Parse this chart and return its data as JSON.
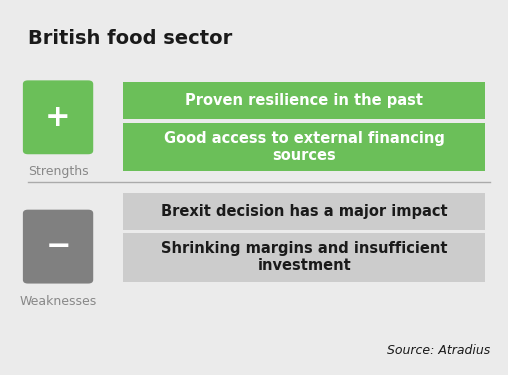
{
  "title": "British food sector",
  "background_color": "#ebebeb",
  "title_fontsize": 14,
  "title_color": "#1a1a1a",
  "strengths_label": "Strengths",
  "weaknesses_label": "Weaknesses",
  "plus_box_color": "#6bbf59",
  "minus_box_color": "#808080",
  "strength_items": [
    "Proven resilience in the past",
    "Good access to external financing\nsources"
  ],
  "weakness_items": [
    "Brexit decision has a major impact",
    "Shrinking margins and insufficient\ninvestment"
  ],
  "strength_box_color": "#6bbf59",
  "weakness_box_color": "#cccccc",
  "strength_text_color": "#ffffff",
  "weakness_text_color": "#1a1a1a",
  "source_text": "Source: Atradius",
  "source_fontsize": 9,
  "item_fontsize": 10.5,
  "label_fontsize": 9,
  "label_color": "#888888",
  "divider_color": "#aaaaaa"
}
